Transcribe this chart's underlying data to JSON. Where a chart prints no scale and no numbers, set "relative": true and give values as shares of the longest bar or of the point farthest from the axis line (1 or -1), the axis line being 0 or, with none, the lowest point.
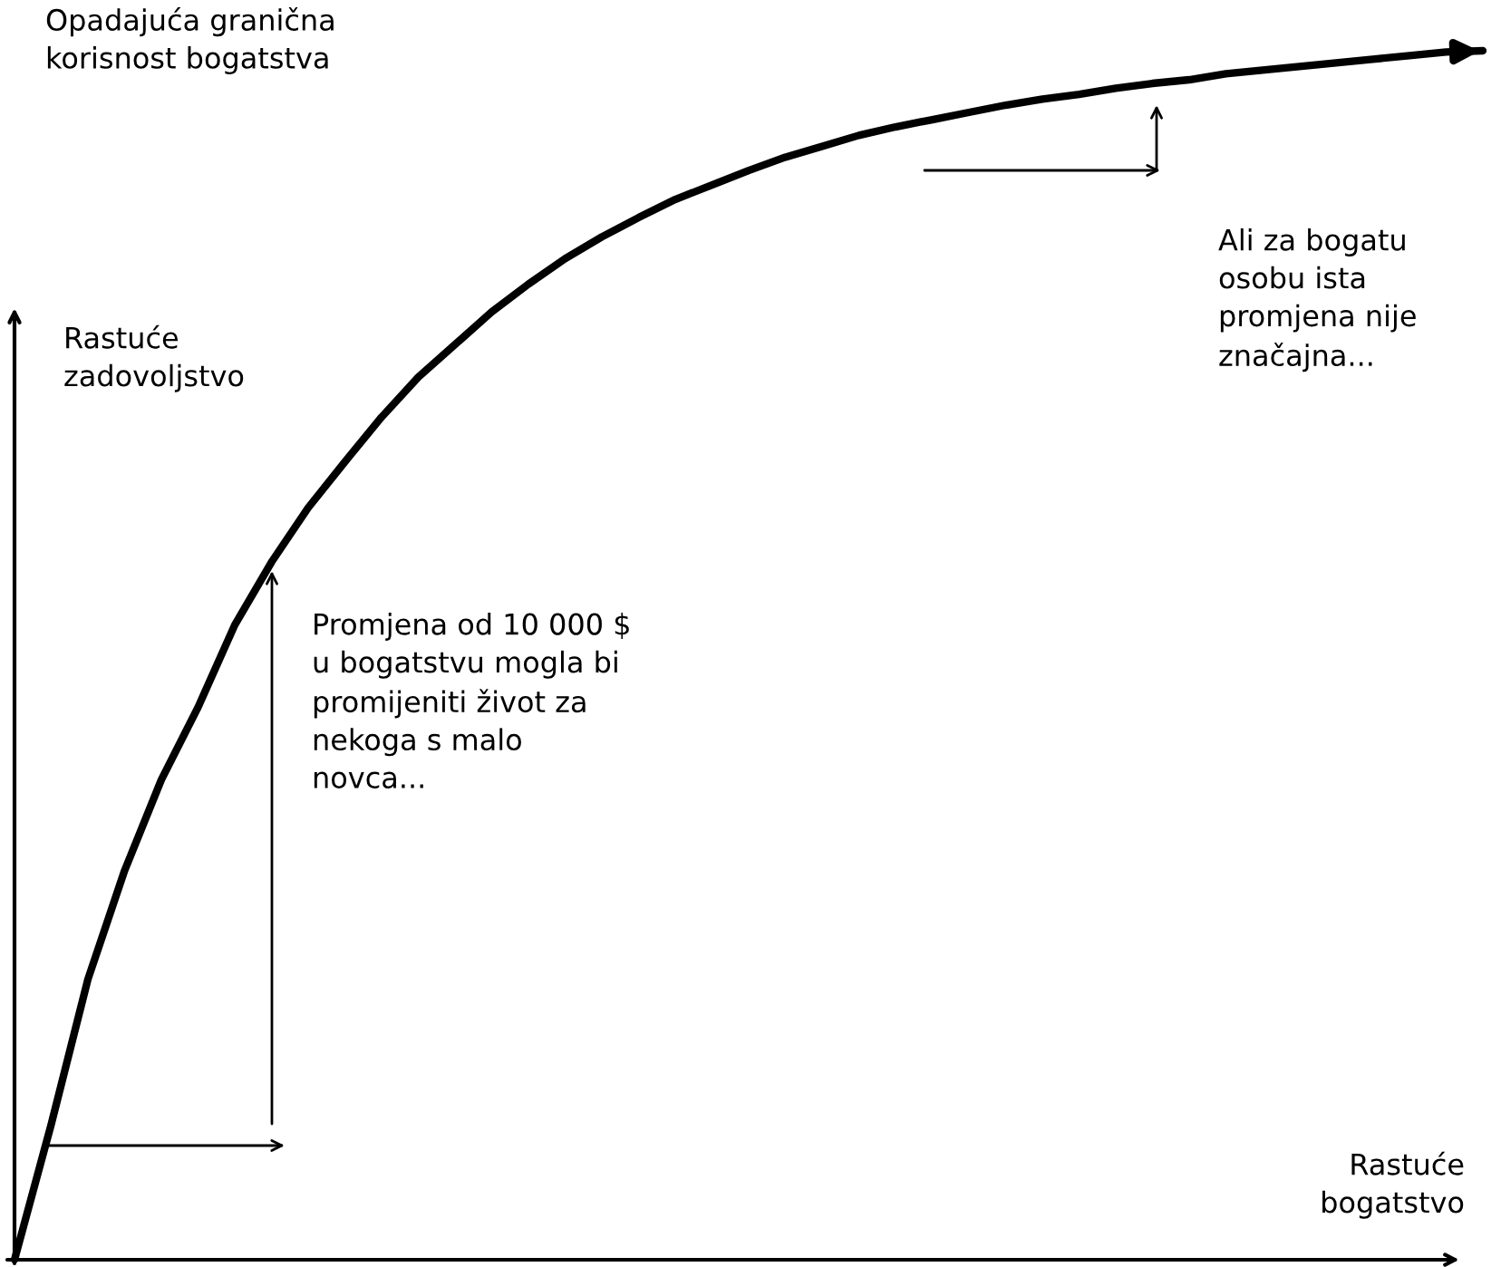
{
  "chart_data": {
    "type": "line",
    "relative": true,
    "title": "Opadajuća granična\nkorisnost bogatstva",
    "ylabel": "Rastuće\nzadovoljstvo",
    "xlabel": "Rastuće\nbogatstvo",
    "annotations": [
      "Promjena od 10 000 $\nu bogatstvu mogla bi\npromijeniti život za\nnekoga s malo\nnovca...",
      "Ali za bogatu\nosobu ista\npromjena nije\nznačajna..."
    ],
    "categories": [
      null,
      null,
      null,
      null,
      null,
      null,
      null,
      null,
      null,
      null,
      null,
      null,
      null,
      null,
      null,
      null,
      null,
      null,
      null,
      null,
      null,
      null,
      null,
      null,
      null,
      null,
      null,
      null,
      null,
      null,
      null,
      null,
      null,
      null,
      null,
      null,
      null,
      null,
      null,
      null,
      null
    ],
    "series": [
      {
        "color": "#000000",
        "values": [
          0,
          0.112,
          0.232,
          0.322,
          0.397,
          0.457,
          0.525,
          0.577,
          0.622,
          0.66,
          0.697,
          0.73,
          0.757,
          0.784,
          0.807,
          0.828,
          0.846,
          0.862,
          0.877,
          0.889,
          0.901,
          0.912,
          0.921,
          0.93,
          0.937,
          0.943,
          0.949,
          0.955,
          0.96,
          0.964,
          0.969,
          0.973,
          0.976,
          0.981,
          0.984,
          0.987,
          0.99,
          0.993,
          0.996,
          0.999,
          1.0
        ]
      }
    ],
    "legend": false,
    "marker": "none",
    "line_style": "solid"
  }
}
